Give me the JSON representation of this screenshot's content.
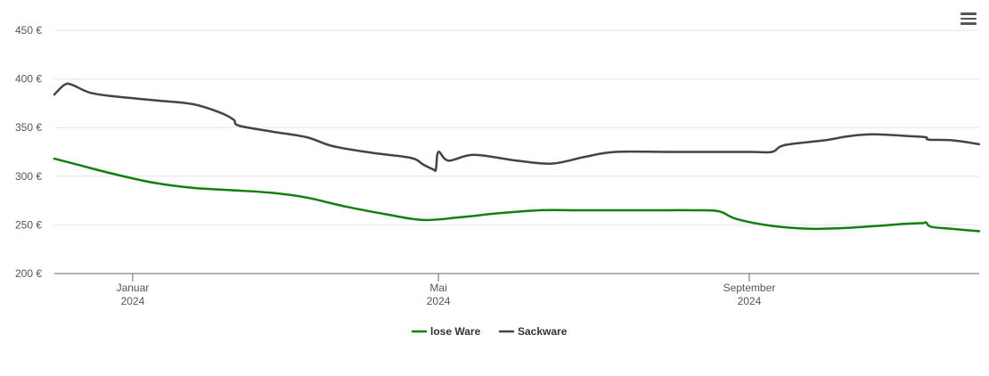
{
  "chart_data": {
    "type": "line",
    "y_ticks": [
      "200 €",
      "250 €",
      "300 €",
      "350 €",
      "400 €",
      "450 €"
    ],
    "ylim": [
      200,
      450
    ],
    "x_ticks": [
      {
        "date": "2024-01-01",
        "line1": "Januar",
        "line2": "2024"
      },
      {
        "date": "2024-05-01",
        "line1": "Mai",
        "line2": "2024"
      },
      {
        "date": "2024-09-01",
        "line1": "September",
        "line2": "2024"
      }
    ],
    "xlim": [
      "2023-12-01",
      "2024-12-01"
    ],
    "grid": true,
    "legend_position": "bottom-center",
    "series": [
      {
        "name": "lose Ware",
        "color": "#137f0e",
        "points": [
          [
            "2023-12-01",
            318
          ],
          [
            "2023-12-10",
            312
          ],
          [
            "2023-12-25",
            302
          ],
          [
            "2024-01-10",
            293
          ],
          [
            "2024-01-25",
            288
          ],
          [
            "2024-02-10",
            285.5
          ],
          [
            "2024-02-25",
            283
          ],
          [
            "2024-03-10",
            278
          ],
          [
            "2024-03-25",
            269
          ],
          [
            "2024-04-10",
            261
          ],
          [
            "2024-04-25",
            255
          ],
          [
            "2024-05-10",
            258
          ],
          [
            "2024-05-25",
            262
          ],
          [
            "2024-06-10",
            265
          ],
          [
            "2024-06-25",
            265
          ],
          [
            "2024-07-10",
            265
          ],
          [
            "2024-07-25",
            265
          ],
          [
            "2024-08-10",
            265
          ],
          [
            "2024-08-20",
            264
          ],
          [
            "2024-08-27",
            256
          ],
          [
            "2024-09-10",
            249
          ],
          [
            "2024-09-25",
            246
          ],
          [
            "2024-10-10",
            247
          ],
          [
            "2024-10-25",
            249.5
          ],
          [
            "2024-11-01",
            251
          ],
          [
            "2024-11-09",
            252
          ],
          [
            "2024-11-10",
            252.5
          ],
          [
            "2024-11-12",
            248
          ],
          [
            "2024-11-20",
            246
          ],
          [
            "2024-12-01",
            243.5
          ]
        ]
      },
      {
        "name": "Sackware",
        "color": "#434348",
        "points": [
          [
            "2023-12-01",
            384
          ],
          [
            "2023-12-05",
            394
          ],
          [
            "2023-12-08",
            394
          ],
          [
            "2023-12-15",
            386
          ],
          [
            "2023-12-25",
            382
          ],
          [
            "2024-01-10",
            378
          ],
          [
            "2024-01-25",
            374
          ],
          [
            "2024-02-05",
            365
          ],
          [
            "2024-02-10",
            358
          ],
          [
            "2024-02-12",
            352
          ],
          [
            "2024-02-25",
            346
          ],
          [
            "2024-03-10",
            340
          ],
          [
            "2024-03-20",
            331
          ],
          [
            "2024-04-05",
            324
          ],
          [
            "2024-04-20",
            319
          ],
          [
            "2024-05-05",
            316
          ],
          [
            "2024-04-25",
            312
          ],
          [
            "2024-04-29",
            307
          ],
          [
            "2024-04-30",
            307
          ],
          [
            "2024-05-01",
            325
          ],
          [
            "2024-05-15",
            322
          ],
          [
            "2024-06-01",
            316
          ],
          [
            "2024-06-15",
            313
          ],
          [
            "2024-06-28",
            320
          ],
          [
            "2024-07-10",
            325
          ],
          [
            "2024-08-01",
            325
          ],
          [
            "2024-09-01",
            325
          ],
          [
            "2024-09-10",
            325
          ],
          [
            "2024-09-15",
            332
          ],
          [
            "2024-10-01",
            337
          ],
          [
            "2024-10-10",
            341
          ],
          [
            "2024-10-20",
            343
          ],
          [
            "2024-11-05",
            341
          ],
          [
            "2024-11-10",
            340
          ],
          [
            "2024-11-11",
            337.5
          ],
          [
            "2024-11-20",
            337
          ],
          [
            "2024-12-01",
            333
          ]
        ]
      }
    ]
  },
  "toolbar": {
    "menu_icon": "hamburger-menu-icon"
  }
}
